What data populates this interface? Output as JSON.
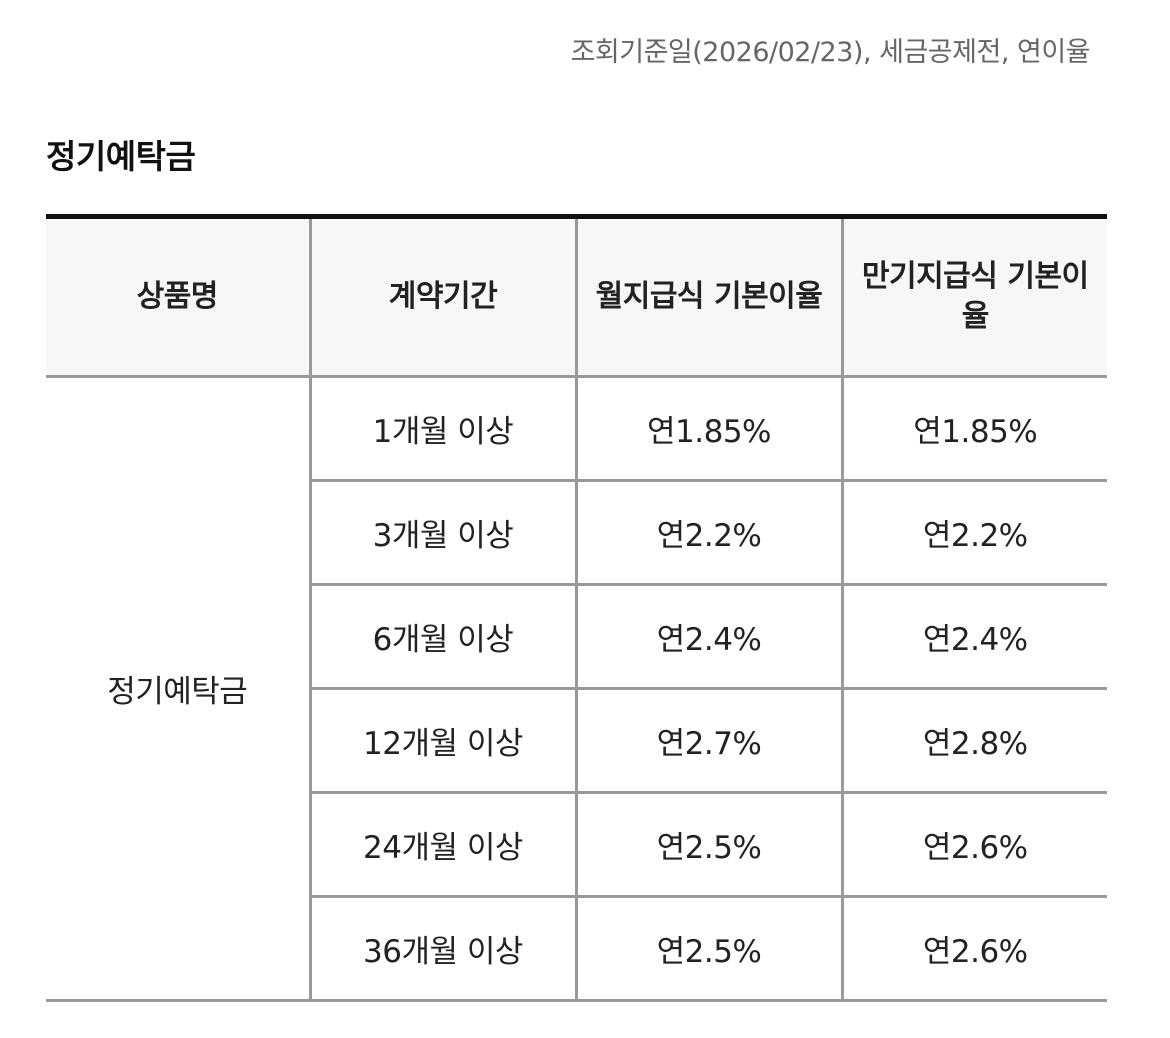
{
  "notice": "조회기준일(2026/02/23), 세금공제전, 연이율",
  "section_title": "정기예탁금",
  "table": {
    "headers": [
      "상품명",
      "계약기간",
      "월지급식 기본이율",
      "만기지급식 기본이율"
    ],
    "product_name": "정기예탁금",
    "rows": [
      {
        "period": "1개월 이상",
        "monthly": "연1.85%",
        "maturity": "연1.85%"
      },
      {
        "period": "3개월 이상",
        "monthly": "연2.2%",
        "maturity": "연2.2%"
      },
      {
        "period": "6개월 이상",
        "monthly": "연2.4%",
        "maturity": "연2.4%"
      },
      {
        "period": "12개월 이상",
        "monthly": "연2.7%",
        "maturity": "연2.8%"
      },
      {
        "period": "24개월 이상",
        "monthly": "연2.5%",
        "maturity": "연2.6%"
      },
      {
        "period": "36개월 이상",
        "monthly": "연2.5%",
        "maturity": "연2.6%"
      }
    ]
  }
}
